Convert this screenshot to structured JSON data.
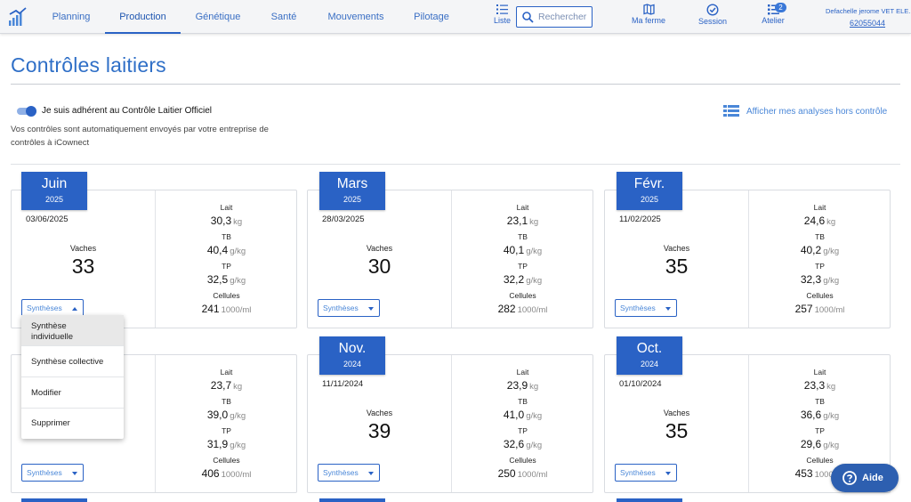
{
  "nav": {
    "tabs": [
      "Planning",
      "Production",
      "Génétique",
      "Santé",
      "Mouvements",
      "Pilotage"
    ],
    "active": "Production",
    "list_label": "Liste",
    "search_placeholder": "Rechercher",
    "tools": [
      "Ma ferme",
      "Session",
      "Atelier"
    ],
    "atelier_badge": "2",
    "user_name": "Defachelle jerome VET ELE...",
    "user_id": "62055044"
  },
  "page": {
    "title": "Contrôles laitiers",
    "toggle_label": "Je suis adhérent au Contrôle Laitier Officiel",
    "toggle_on": true,
    "description": "Vos contrôles sont automatiquement envoyés par votre entreprise de contrôles à iCownect",
    "analyses_link": "Afficher mes analyses hors contrôle"
  },
  "labels": {
    "vaches": "Vaches",
    "lait": "Lait",
    "tb": "TB",
    "tp": "TP",
    "cellules": "Cellules",
    "unit_kg": "kg",
    "unit_gkg": "g/kg",
    "unit_cells": "1000/ml",
    "syntheses": "Synthèses"
  },
  "cards": [
    {
      "month": "Juin",
      "year": "2025",
      "date": "03/06/2025",
      "vaches": "33",
      "lait": "30,3",
      "tb": "40,4",
      "tp": "32,5",
      "cellules": "241"
    },
    {
      "month": "Mars",
      "year": "2025",
      "date": "28/03/2025",
      "vaches": "30",
      "lait": "23,1",
      "tb": "40,1",
      "tp": "32,2",
      "cellules": "282"
    },
    {
      "month": "Févr.",
      "year": "2025",
      "date": "11/02/2025",
      "vaches": "35",
      "lait": "24,6",
      "tb": "40,2",
      "tp": "32,3",
      "cellules": "257"
    },
    {
      "month": "",
      "year": "",
      "date": "",
      "vaches": "",
      "lait": "23,7",
      "tb": "39,0",
      "tp": "31,9",
      "cellules": "406"
    },
    {
      "month": "Nov.",
      "year": "2024",
      "date": "11/11/2024",
      "vaches": "39",
      "lait": "23,9",
      "tb": "41,0",
      "tp": "32,6",
      "cellules": "250"
    },
    {
      "month": "Oct.",
      "year": "2024",
      "date": "01/10/2024",
      "vaches": "35",
      "lait": "23,3",
      "tb": "36,6",
      "tp": "29,6",
      "cellules": "453"
    }
  ],
  "dropdown": {
    "items": [
      "Synthèse individuelle",
      "Synthèse collective",
      "Modifier",
      "Supprimer"
    ]
  },
  "help": {
    "label": "Aide"
  }
}
